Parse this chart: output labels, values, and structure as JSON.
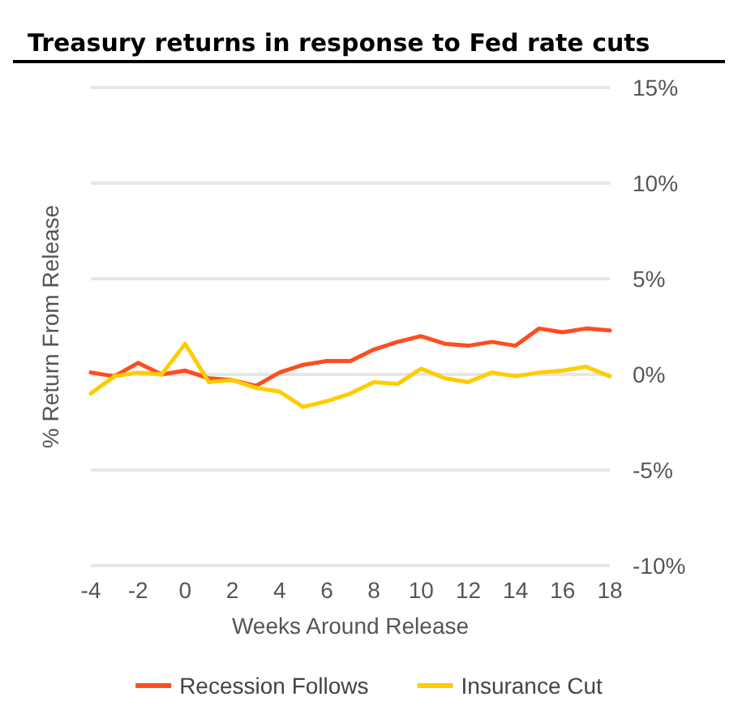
{
  "chart_data": {
    "type": "line",
    "title": "Treasury returns in response to Fed rate cuts",
    "xlabel": "Weeks Around Release",
    "ylabel": "% Return From Release",
    "x": [
      -4,
      -3,
      -2,
      -1,
      0,
      1,
      2,
      3,
      4,
      5,
      6,
      7,
      8,
      9,
      10,
      11,
      12,
      13,
      14,
      15,
      16,
      17,
      18
    ],
    "series": [
      {
        "name": "Recession Follows",
        "color": "#ff4d1f",
        "values": [
          0.1,
          -0.1,
          0.6,
          0,
          0.2,
          -0.2,
          -0.3,
          -0.6,
          0.1,
          0.5,
          0.7,
          0.7,
          1.3,
          1.7,
          2.0,
          1.6,
          1.5,
          1.7,
          1.5,
          2.4,
          2.2,
          2.4,
          2.3
        ]
      },
      {
        "name": "Insurance Cut",
        "color": "#ffcc00",
        "values": [
          -1.0,
          -0.1,
          0.1,
          0,
          1.6,
          -0.4,
          -0.3,
          -0.7,
          -0.9,
          -1.7,
          -1.4,
          -1.0,
          -0.4,
          -0.5,
          0.3,
          -0.2,
          -0.4,
          0.1,
          -0.1,
          0.1,
          0.2,
          0.4,
          -0.1
        ]
      }
    ],
    "xlim": [
      -4,
      18
    ],
    "xticks": [
      -4,
      -2,
      0,
      2,
      4,
      6,
      8,
      10,
      12,
      14,
      16,
      18
    ],
    "ylim": [
      -10,
      15
    ],
    "yticks": [
      {
        "value": -10,
        "label": "-10%"
      },
      {
        "value": -5,
        "label": "-5%"
      },
      {
        "value": 0,
        "label": "0%"
      },
      {
        "value": 5,
        "label": "5%"
      },
      {
        "value": 10,
        "label": "10%"
      },
      {
        "value": 15,
        "label": "15%"
      }
    ],
    "grid": "y",
    "legend": "bottom",
    "marker": "none",
    "line_style": "solid"
  }
}
